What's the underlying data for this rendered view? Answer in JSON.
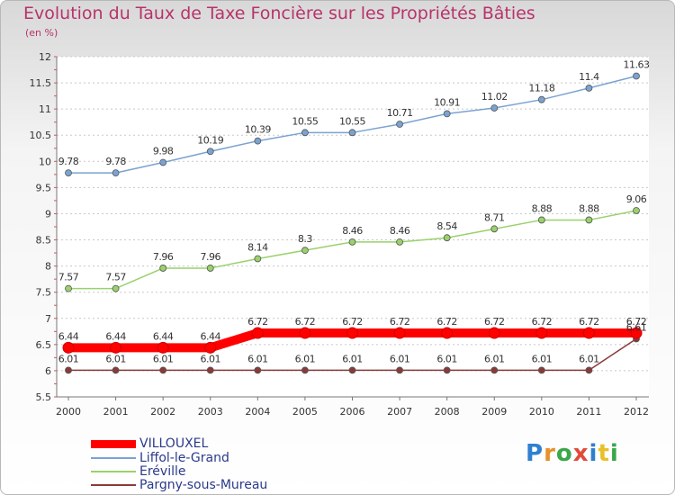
{
  "header": {
    "title": "Evolution du Taux de Taxe Foncière sur les Propriétés Bâties",
    "unit": "(en %)"
  },
  "logo": {
    "text": "Proxiti"
  },
  "chart_data": {
    "type": "line",
    "title": "Evolution du Taux de Taxe Foncière sur les Propriétés Bâties",
    "ylabel": "(en %)",
    "xlabel": "",
    "x": [
      "2000",
      "2001",
      "2002",
      "2003",
      "2004",
      "2005",
      "2006",
      "2007",
      "2008",
      "2009",
      "2010",
      "2011",
      "2012"
    ],
    "ylim": [
      5.5,
      12
    ],
    "yticks": [
      "5.5",
      "6",
      "6.5",
      "7",
      "7.5",
      "8",
      "8.5",
      "9",
      "9.5",
      "10",
      "10.5",
      "11",
      "11.5",
      "12"
    ],
    "grid": "horizontal dotted",
    "legend_position": "bottom-left",
    "series": [
      {
        "name": "VILLOUXEL",
        "color": "#ff0000",
        "values": [
          6.44,
          6.44,
          6.44,
          6.44,
          6.72,
          6.72,
          6.72,
          6.72,
          6.72,
          6.72,
          6.72,
          6.72,
          6.72
        ],
        "labels": [
          "6.44",
          "6.44",
          "6.44",
          "6.44",
          "6.72",
          "6.72",
          "6.72",
          "6.72",
          "6.72",
          "6.72",
          "6.72",
          "6.72",
          "6.72"
        ]
      },
      {
        "name": "Liffol-le-Grand",
        "color": "#7aa3d1",
        "values": [
          9.78,
          9.78,
          9.98,
          10.19,
          10.39,
          10.55,
          10.55,
          10.71,
          10.91,
          11.02,
          11.18,
          11.4,
          11.63
        ],
        "labels": [
          "9.78",
          "9.78",
          "9.98",
          "10.19",
          "10.39",
          "10.55",
          "10.55",
          "10.71",
          "10.91",
          "11.02",
          "11.18",
          "11.4",
          "11.63"
        ]
      },
      {
        "name": "Eréville",
        "color": "#99d16b",
        "values": [
          7.57,
          7.57,
          7.96,
          7.96,
          8.14,
          8.3,
          8.46,
          8.46,
          8.54,
          8.71,
          8.88,
          8.88,
          9.06
        ],
        "labels": [
          "7.57",
          "7.57",
          "7.96",
          "7.96",
          "8.14",
          "8.3",
          "8.46",
          "8.46",
          "8.54",
          "8.71",
          "8.88",
          "8.88",
          "9.06"
        ]
      },
      {
        "name": "Pargny-sous-Mureau",
        "color": "#8a3a3a",
        "values": [
          6.01,
          6.01,
          6.01,
          6.01,
          6.01,
          6.01,
          6.01,
          6.01,
          6.01,
          6.01,
          6.01,
          6.01,
          6.61
        ],
        "labels": [
          "6.01",
          "6.01",
          "6.01",
          "6.01",
          "6.01",
          "6.01",
          "6.01",
          "6.01",
          "6.01",
          "6.01",
          "6.01",
          "6.01",
          "6.61"
        ]
      }
    ]
  }
}
